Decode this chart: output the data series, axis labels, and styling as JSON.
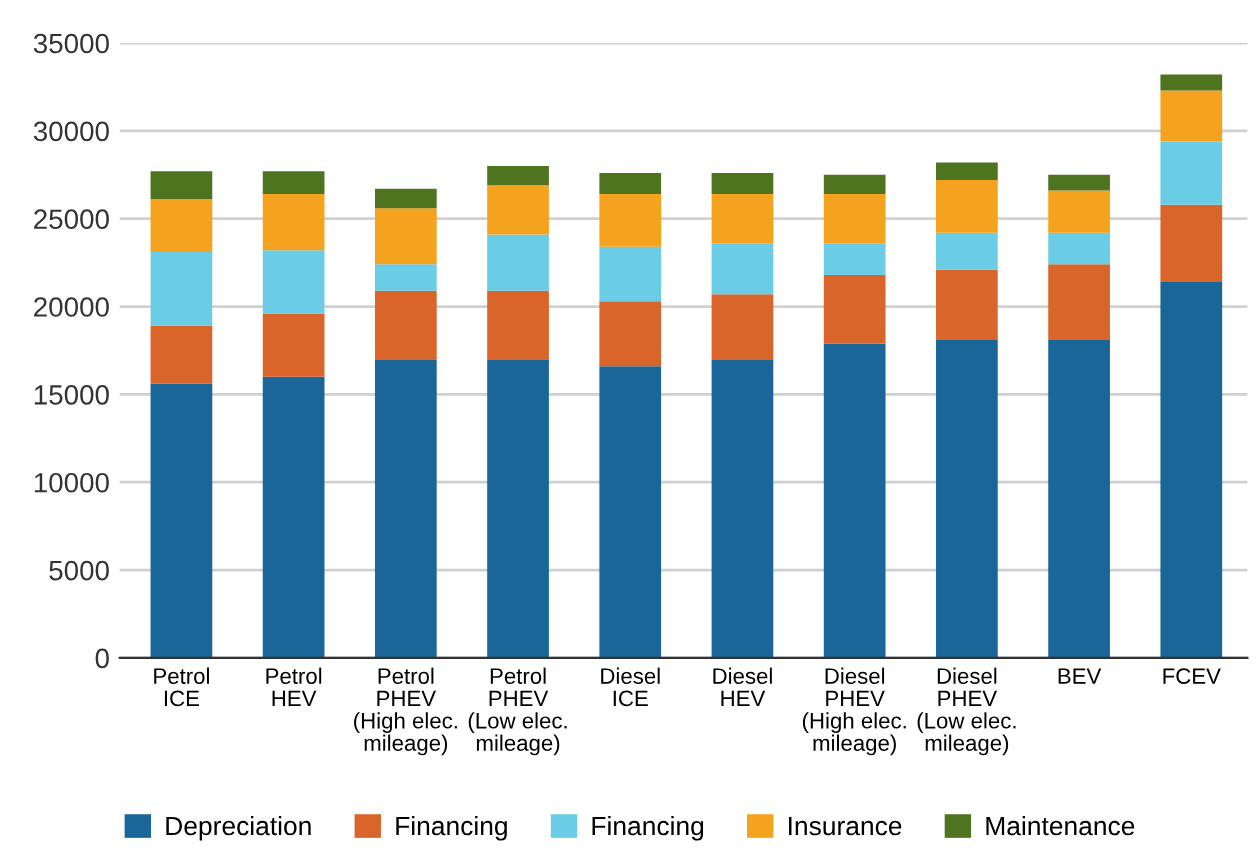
{
  "chart_data": {
    "type": "bar",
    "stacked": true,
    "categories": [
      "Petrol\nICE",
      "Petrol\nHEV",
      "Petrol\nPHEV\n(High elec.\nmileage)",
      "Petrol\nPHEV\n(Low elec.\nmileage)",
      "Diesel\nICE",
      "Diesel\nHEV",
      "Diesel\nPHEV\n(High elec.\nmileage)",
      "Diesel\nPHEV\n(Low elec.\nmileage)",
      "BEV",
      "FCEV"
    ],
    "series": [
      {
        "name": "Depreciation",
        "color": "#1a6699",
        "values": [
          15600,
          16000,
          17000,
          17000,
          16600,
          17000,
          17900,
          18100,
          18100,
          21400
        ]
      },
      {
        "name": "Financing",
        "color": "#d9652b",
        "values": [
          3300,
          3600,
          3900,
          3900,
          3700,
          3700,
          3900,
          4000,
          4300,
          4400
        ]
      },
      {
        "name": "Financing",
        "color": "#6acde5",
        "values": [
          4200,
          3600,
          1500,
          3200,
          3100,
          2900,
          1800,
          2100,
          1800,
          3600
        ]
      },
      {
        "name": "Insurance",
        "color": "#f5a31e",
        "values": [
          3000,
          3200,
          3200,
          2800,
          3000,
          2800,
          2800,
          3000,
          2400,
          2900
        ]
      },
      {
        "name": "Maintenance",
        "color": "#4e741f",
        "values": [
          1600,
          1300,
          1100,
          1100,
          1200,
          1200,
          1100,
          1000,
          900,
          900
        ]
      }
    ],
    "ylim": [
      0,
      35000
    ],
    "yticks": [
      0,
      5000,
      10000,
      15000,
      20000,
      25000,
      30000,
      35000
    ],
    "grid": "y",
    "legend": "bottom"
  }
}
